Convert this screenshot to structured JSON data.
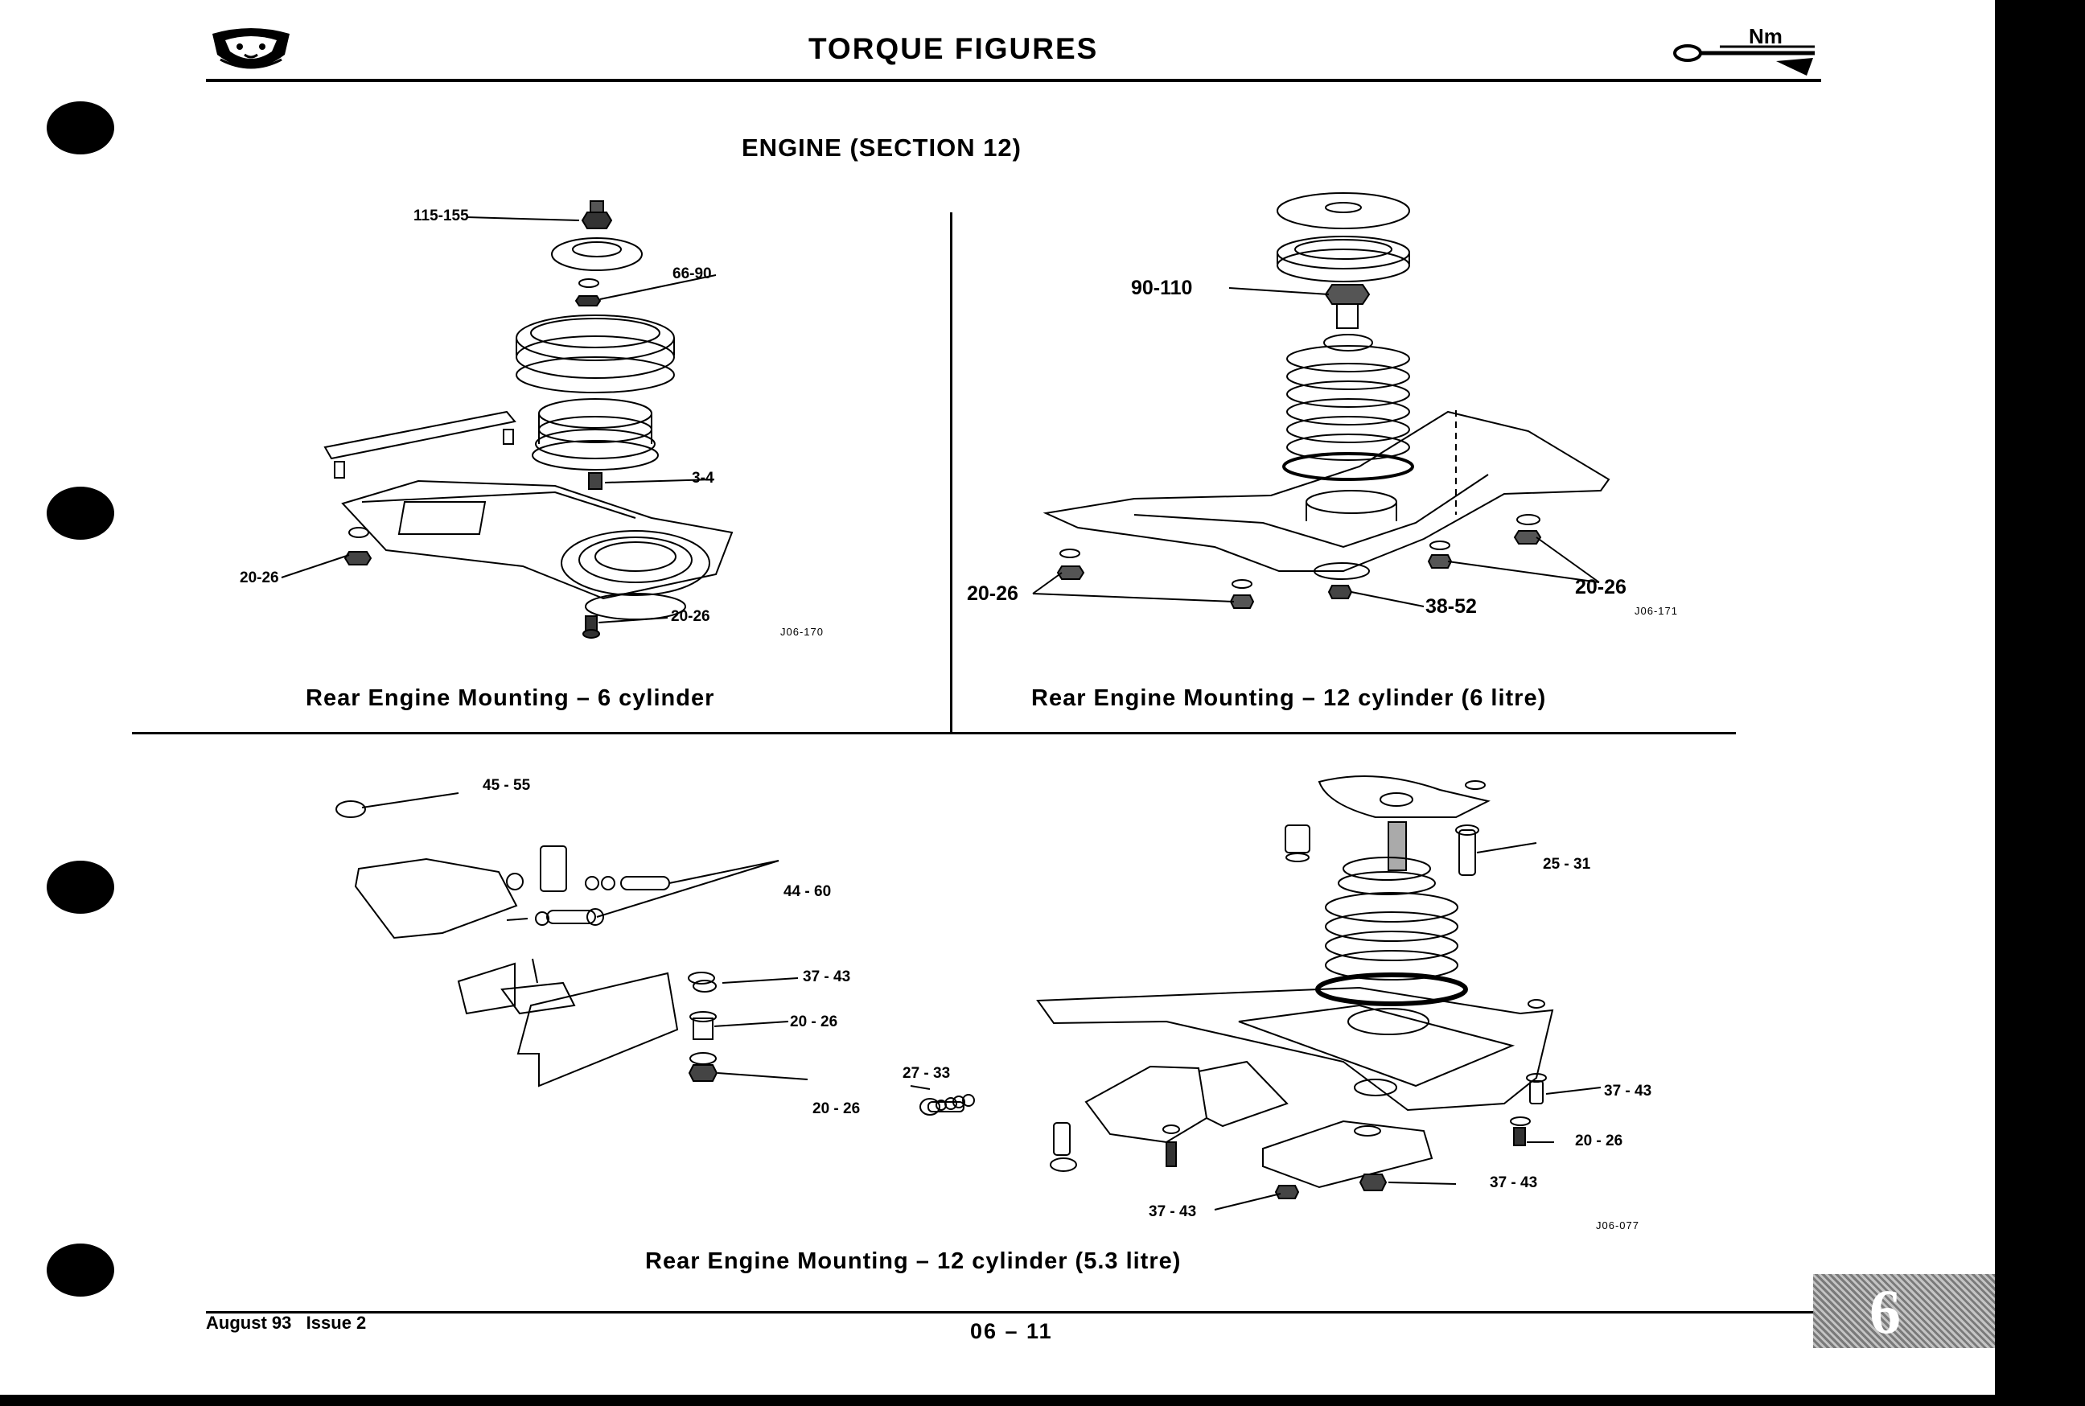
{
  "header": {
    "title": "TORQUE FIGURES",
    "icon_unit": "Nm"
  },
  "section_title": "ENGINE (SECTION 12)",
  "figures": [
    {
      "caption": "Rear Engine Mounting – 6 cylinder",
      "ref": "J06-170",
      "labels": [
        "115-155",
        "66-90",
        "3-4",
        "20-26",
        "20-26"
      ]
    },
    {
      "caption": "Rear Engine Mounting – 12 cylinder (6 litre)",
      "ref": "J06-171",
      "labels": [
        "90-110",
        "20-26",
        "20-26",
        "38-52"
      ]
    },
    {
      "caption": "Rear Engine Mounting – 12 cylinder (5.3 litre)",
      "ref": "J06-077",
      "labels": [
        "45 - 55",
        "44 - 60",
        "37 - 43",
        "20 - 26",
        "20 - 26",
        "27 - 33",
        "25 - 31",
        "37 - 43",
        "20 - 26",
        "37 - 43",
        "37 - 43"
      ]
    }
  ],
  "footer": {
    "date_issue": "August 93   Issue 2",
    "page_number": "06 – 11",
    "section_tab": "6"
  }
}
